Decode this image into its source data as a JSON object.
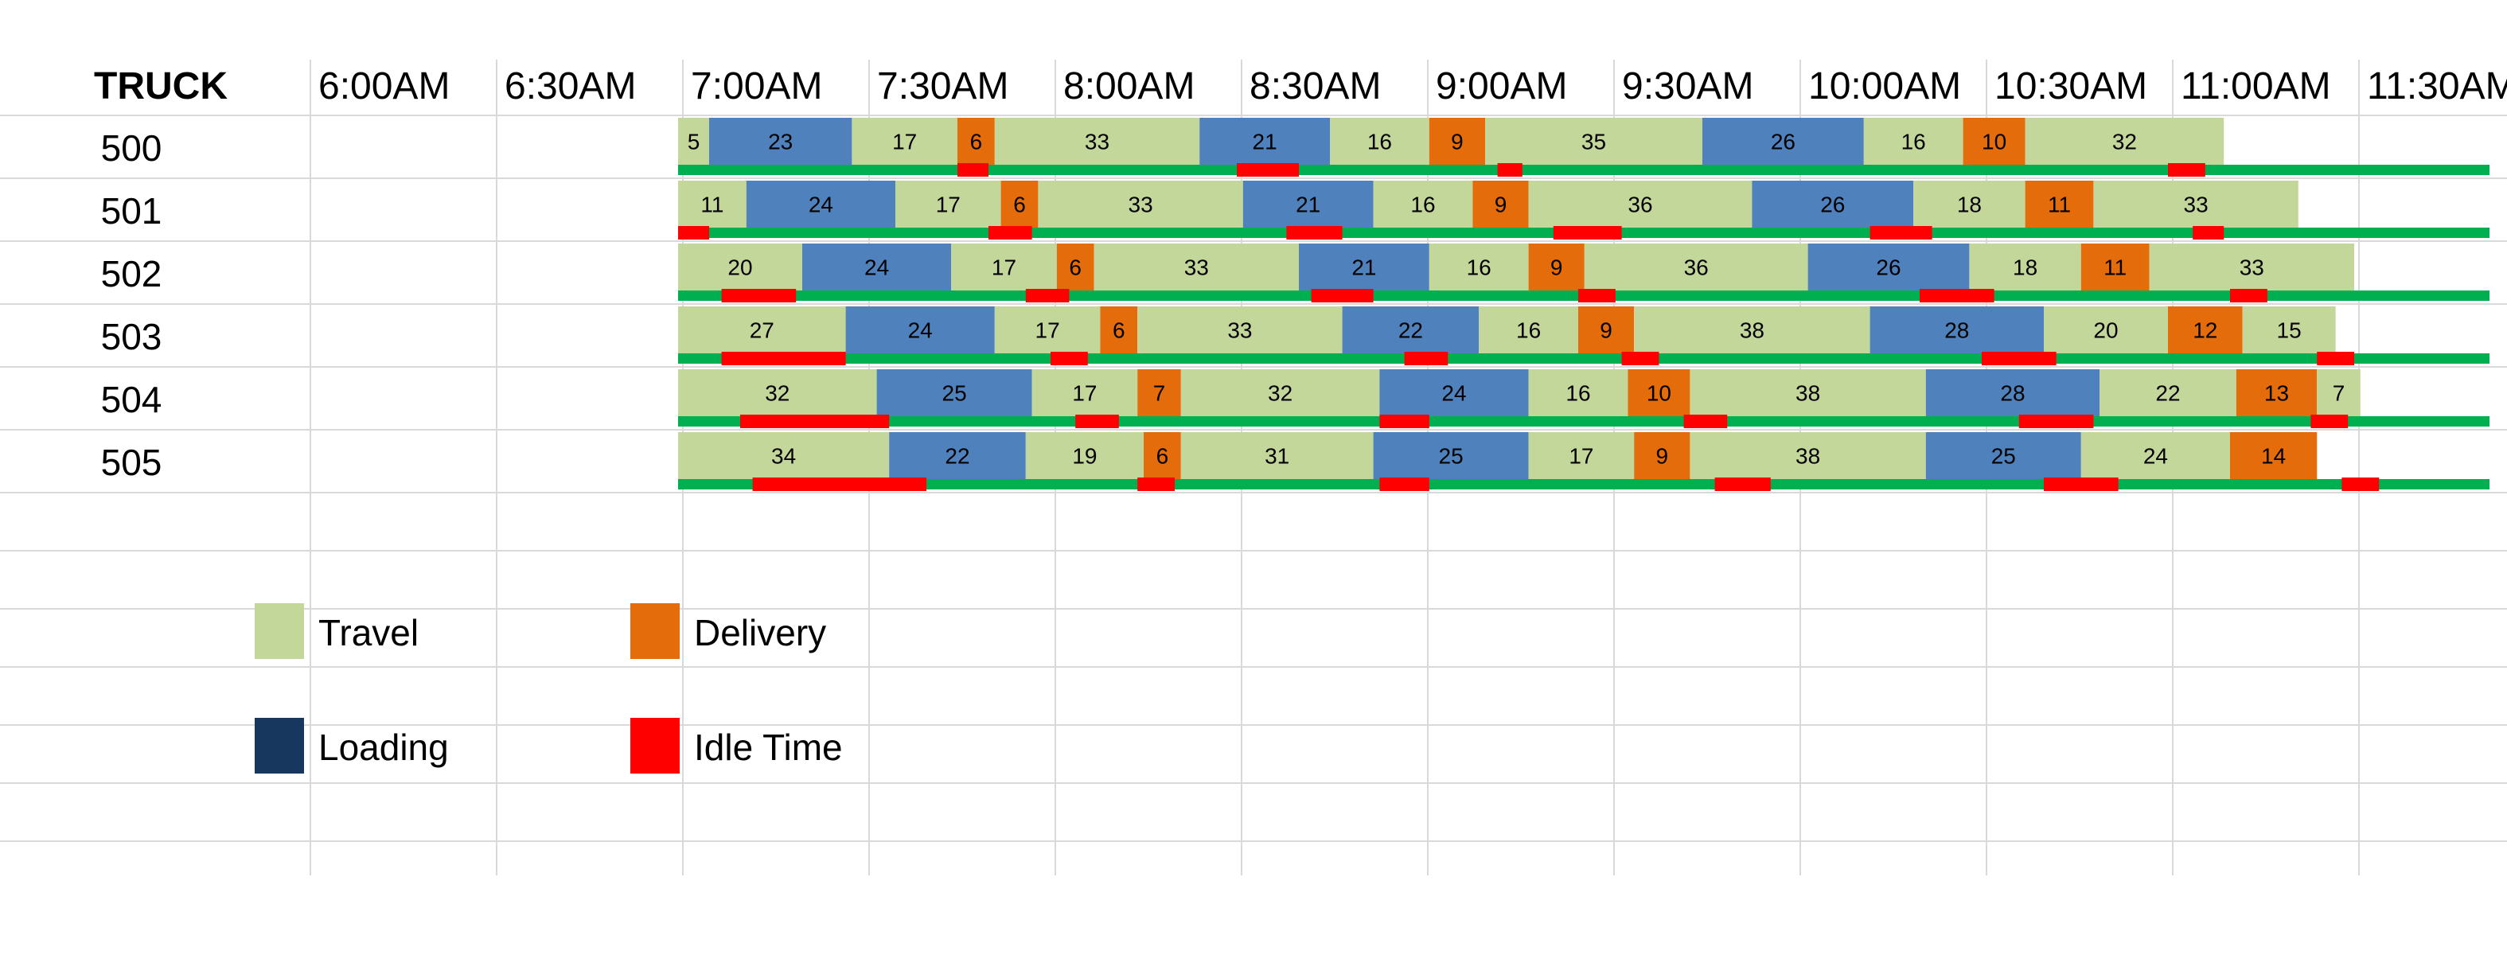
{
  "chart_data": {
    "type": "gantt",
    "row_header": "TRUCK",
    "time_labels": [
      "6:00AM",
      "6:30AM",
      "7:00AM",
      "7:30AM",
      "8:00AM",
      "8:30AM",
      "9:00AM",
      "9:30AM",
      "10:00AM",
      "10:30AM",
      "11:00AM",
      "11:30AM"
    ],
    "unit": "minutes",
    "colors": {
      "Travel": "#c4d79b",
      "Loading": "#4f81bd",
      "Loading_legend": "#17375e",
      "Delivery": "#e46c0a",
      "Idle Time": "#ff0000",
      "baseline": "#00b050"
    },
    "rows": [
      {
        "truck": "500",
        "segments": [
          {
            "type": "Travel",
            "minutes": 5
          },
          {
            "type": "Loading",
            "minutes": 23
          },
          {
            "type": "Travel",
            "minutes": 17
          },
          {
            "type": "Delivery",
            "minutes": 6
          },
          {
            "type": "Travel",
            "minutes": 33
          },
          {
            "type": "Loading",
            "minutes": 21
          },
          {
            "type": "Travel",
            "minutes": 16
          },
          {
            "type": "Delivery",
            "minutes": 9
          },
          {
            "type": "Travel",
            "minutes": 35
          },
          {
            "type": "Loading",
            "minutes": 26
          },
          {
            "type": "Travel",
            "minutes": 16
          },
          {
            "type": "Delivery",
            "minutes": 10
          },
          {
            "type": "Travel",
            "minutes": 32
          }
        ],
        "idle": [
          {
            "start": "7:45AM",
            "minutes": 5
          },
          {
            "start": "8:30AM",
            "minutes": 10
          },
          {
            "start": "9:12AM",
            "minutes": 4
          },
          {
            "start": "11:00AM",
            "minutes": 6
          }
        ]
      },
      {
        "truck": "501",
        "segments": [
          {
            "type": "Travel",
            "minutes": 11
          },
          {
            "type": "Loading",
            "minutes": 24
          },
          {
            "type": "Travel",
            "minutes": 17
          },
          {
            "type": "Delivery",
            "minutes": 6
          },
          {
            "type": "Travel",
            "minutes": 33
          },
          {
            "type": "Loading",
            "minutes": 21
          },
          {
            "type": "Travel",
            "minutes": 16
          },
          {
            "type": "Delivery",
            "minutes": 9
          },
          {
            "type": "Travel",
            "minutes": 36
          },
          {
            "type": "Loading",
            "minutes": 26
          },
          {
            "type": "Travel",
            "minutes": 18
          },
          {
            "type": "Delivery",
            "minutes": 11
          },
          {
            "type": "Travel",
            "minutes": 33
          }
        ],
        "idle": [
          {
            "start": "7:00AM",
            "minutes": 5
          },
          {
            "start": "7:50AM",
            "minutes": 7
          },
          {
            "start": "8:38AM",
            "minutes": 9
          },
          {
            "start": "9:21AM",
            "minutes": 11
          },
          {
            "start": "10:12AM",
            "minutes": 10
          },
          {
            "start": "11:04AM",
            "minutes": 5
          }
        ]
      },
      {
        "truck": "502",
        "segments": [
          {
            "type": "Travel",
            "minutes": 20
          },
          {
            "type": "Loading",
            "minutes": 24
          },
          {
            "type": "Travel",
            "minutes": 17
          },
          {
            "type": "Delivery",
            "minutes": 6
          },
          {
            "type": "Travel",
            "minutes": 33
          },
          {
            "type": "Loading",
            "minutes": 21
          },
          {
            "type": "Travel",
            "minutes": 16
          },
          {
            "type": "Delivery",
            "minutes": 9
          },
          {
            "type": "Travel",
            "minutes": 36
          },
          {
            "type": "Loading",
            "minutes": 26
          },
          {
            "type": "Travel",
            "minutes": 18
          },
          {
            "type": "Delivery",
            "minutes": 11
          },
          {
            "type": "Travel",
            "minutes": 33
          }
        ],
        "idle": [
          {
            "start": "7:07AM",
            "minutes": 12
          },
          {
            "start": "7:56AM",
            "minutes": 7
          },
          {
            "start": "8:42AM",
            "minutes": 10
          },
          {
            "start": "9:25AM",
            "minutes": 6
          },
          {
            "start": "10:20AM",
            "minutes": 12
          },
          {
            "start": "11:10AM",
            "minutes": 6
          }
        ]
      },
      {
        "truck": "503",
        "segments": [
          {
            "type": "Travel",
            "minutes": 27
          },
          {
            "type": "Loading",
            "minutes": 24
          },
          {
            "type": "Travel",
            "minutes": 17
          },
          {
            "type": "Delivery",
            "minutes": 6
          },
          {
            "type": "Travel",
            "minutes": 33
          },
          {
            "type": "Loading",
            "minutes": 22
          },
          {
            "type": "Travel",
            "minutes": 16
          },
          {
            "type": "Delivery",
            "minutes": 9
          },
          {
            "type": "Travel",
            "minutes": 38
          },
          {
            "type": "Loading",
            "minutes": 28
          },
          {
            "type": "Travel",
            "minutes": 20
          },
          {
            "type": "Delivery",
            "minutes": 12
          },
          {
            "type": "Travel",
            "minutes": 15
          }
        ],
        "idle": [
          {
            "start": "7:07AM",
            "minutes": 20
          },
          {
            "start": "8:00AM",
            "minutes": 6
          },
          {
            "start": "8:57AM",
            "minutes": 7
          },
          {
            "start": "9:32AM",
            "minutes": 6
          },
          {
            "start": "10:30AM",
            "minutes": 12
          },
          {
            "start": "11:24AM",
            "minutes": 6
          }
        ]
      },
      {
        "truck": "504",
        "segments": [
          {
            "type": "Travel",
            "minutes": 32
          },
          {
            "type": "Loading",
            "minutes": 25
          },
          {
            "type": "Travel",
            "minutes": 17
          },
          {
            "type": "Delivery",
            "minutes": 7
          },
          {
            "type": "Travel",
            "minutes": 32
          },
          {
            "type": "Loading",
            "minutes": 24
          },
          {
            "type": "Travel",
            "minutes": 16
          },
          {
            "type": "Delivery",
            "minutes": 10
          },
          {
            "type": "Travel",
            "minutes": 38
          },
          {
            "type": "Loading",
            "minutes": 28
          },
          {
            "type": "Travel",
            "minutes": 22
          },
          {
            "type": "Delivery",
            "minutes": 13
          },
          {
            "type": "Travel",
            "minutes": 7
          }
        ],
        "idle": [
          {
            "start": "7:10AM",
            "minutes": 24
          },
          {
            "start": "8:04AM",
            "minutes": 7
          },
          {
            "start": "8:53AM",
            "minutes": 8
          },
          {
            "start": "9:42AM",
            "minutes": 7
          },
          {
            "start": "10:36AM",
            "minutes": 12
          },
          {
            "start": "11:23AM",
            "minutes": 6
          }
        ]
      },
      {
        "truck": "505",
        "segments": [
          {
            "type": "Travel",
            "minutes": 34
          },
          {
            "type": "Loading",
            "minutes": 22
          },
          {
            "type": "Travel",
            "minutes": 19
          },
          {
            "type": "Delivery",
            "minutes": 6
          },
          {
            "type": "Travel",
            "minutes": 31
          },
          {
            "type": "Loading",
            "minutes": 25
          },
          {
            "type": "Travel",
            "minutes": 17
          },
          {
            "type": "Delivery",
            "minutes": 9
          },
          {
            "type": "Travel",
            "minutes": 38
          },
          {
            "type": "Loading",
            "minutes": 25
          },
          {
            "type": "Travel",
            "minutes": 24
          },
          {
            "type": "Delivery",
            "minutes": 14
          }
        ],
        "idle": [
          {
            "start": "7:12AM",
            "minutes": 28
          },
          {
            "start": "8:14AM",
            "minutes": 6
          },
          {
            "start": "8:53AM",
            "minutes": 8
          },
          {
            "start": "9:47AM",
            "minutes": 9
          },
          {
            "start": "10:40AM",
            "minutes": 12
          },
          {
            "start": "11:28AM",
            "minutes": 6
          }
        ]
      }
    ]
  },
  "legend": {
    "travel": "Travel",
    "delivery": "Delivery",
    "loading": "Loading",
    "idle": "Idle Time"
  }
}
